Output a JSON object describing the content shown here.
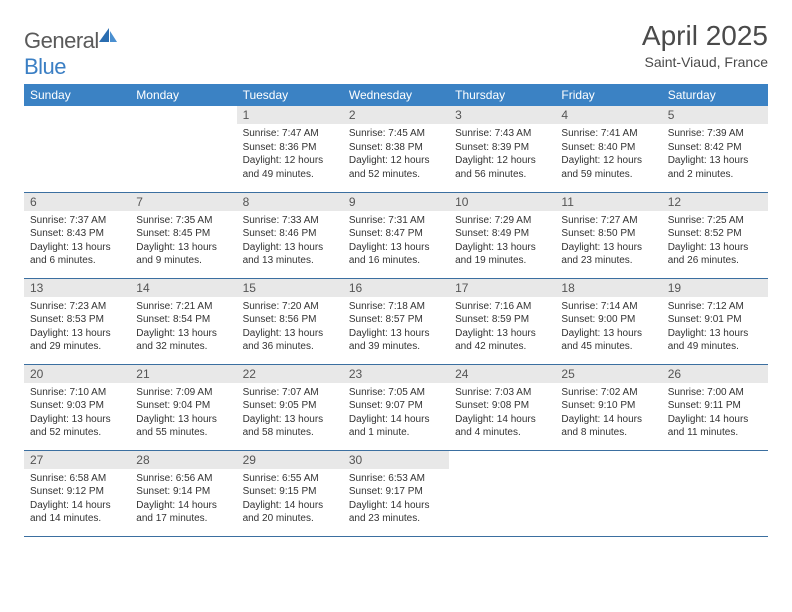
{
  "logo": {
    "text1": "General",
    "text2": "Blue"
  },
  "title": "April 2025",
  "subtitle": "Saint-Viaud, France",
  "colors": {
    "header_bg": "#3b82c4",
    "header_text": "#ffffff",
    "daynum_bg": "#e8e8e8",
    "daynum_text": "#555555",
    "body_text": "#333333",
    "border": "#3b6fa0",
    "logo_gray": "#5a5a5a",
    "logo_blue": "#3b7fc4"
  },
  "weekdays": [
    "Sunday",
    "Monday",
    "Tuesday",
    "Wednesday",
    "Thursday",
    "Friday",
    "Saturday"
  ],
  "weeks": [
    [
      null,
      null,
      {
        "n": "1",
        "sr": "7:47 AM",
        "ss": "8:36 PM",
        "dl": "12 hours and 49 minutes."
      },
      {
        "n": "2",
        "sr": "7:45 AM",
        "ss": "8:38 PM",
        "dl": "12 hours and 52 minutes."
      },
      {
        "n": "3",
        "sr": "7:43 AM",
        "ss": "8:39 PM",
        "dl": "12 hours and 56 minutes."
      },
      {
        "n": "4",
        "sr": "7:41 AM",
        "ss": "8:40 PM",
        "dl": "12 hours and 59 minutes."
      },
      {
        "n": "5",
        "sr": "7:39 AM",
        "ss": "8:42 PM",
        "dl": "13 hours and 2 minutes."
      }
    ],
    [
      {
        "n": "6",
        "sr": "7:37 AM",
        "ss": "8:43 PM",
        "dl": "13 hours and 6 minutes."
      },
      {
        "n": "7",
        "sr": "7:35 AM",
        "ss": "8:45 PM",
        "dl": "13 hours and 9 minutes."
      },
      {
        "n": "8",
        "sr": "7:33 AM",
        "ss": "8:46 PM",
        "dl": "13 hours and 13 minutes."
      },
      {
        "n": "9",
        "sr": "7:31 AM",
        "ss": "8:47 PM",
        "dl": "13 hours and 16 minutes."
      },
      {
        "n": "10",
        "sr": "7:29 AM",
        "ss": "8:49 PM",
        "dl": "13 hours and 19 minutes."
      },
      {
        "n": "11",
        "sr": "7:27 AM",
        "ss": "8:50 PM",
        "dl": "13 hours and 23 minutes."
      },
      {
        "n": "12",
        "sr": "7:25 AM",
        "ss": "8:52 PM",
        "dl": "13 hours and 26 minutes."
      }
    ],
    [
      {
        "n": "13",
        "sr": "7:23 AM",
        "ss": "8:53 PM",
        "dl": "13 hours and 29 minutes."
      },
      {
        "n": "14",
        "sr": "7:21 AM",
        "ss": "8:54 PM",
        "dl": "13 hours and 32 minutes."
      },
      {
        "n": "15",
        "sr": "7:20 AM",
        "ss": "8:56 PM",
        "dl": "13 hours and 36 minutes."
      },
      {
        "n": "16",
        "sr": "7:18 AM",
        "ss": "8:57 PM",
        "dl": "13 hours and 39 minutes."
      },
      {
        "n": "17",
        "sr": "7:16 AM",
        "ss": "8:59 PM",
        "dl": "13 hours and 42 minutes."
      },
      {
        "n": "18",
        "sr": "7:14 AM",
        "ss": "9:00 PM",
        "dl": "13 hours and 45 minutes."
      },
      {
        "n": "19",
        "sr": "7:12 AM",
        "ss": "9:01 PM",
        "dl": "13 hours and 49 minutes."
      }
    ],
    [
      {
        "n": "20",
        "sr": "7:10 AM",
        "ss": "9:03 PM",
        "dl": "13 hours and 52 minutes."
      },
      {
        "n": "21",
        "sr": "7:09 AM",
        "ss": "9:04 PM",
        "dl": "13 hours and 55 minutes."
      },
      {
        "n": "22",
        "sr": "7:07 AM",
        "ss": "9:05 PM",
        "dl": "13 hours and 58 minutes."
      },
      {
        "n": "23",
        "sr": "7:05 AM",
        "ss": "9:07 PM",
        "dl": "14 hours and 1 minute."
      },
      {
        "n": "24",
        "sr": "7:03 AM",
        "ss": "9:08 PM",
        "dl": "14 hours and 4 minutes."
      },
      {
        "n": "25",
        "sr": "7:02 AM",
        "ss": "9:10 PM",
        "dl": "14 hours and 8 minutes."
      },
      {
        "n": "26",
        "sr": "7:00 AM",
        "ss": "9:11 PM",
        "dl": "14 hours and 11 minutes."
      }
    ],
    [
      {
        "n": "27",
        "sr": "6:58 AM",
        "ss": "9:12 PM",
        "dl": "14 hours and 14 minutes."
      },
      {
        "n": "28",
        "sr": "6:56 AM",
        "ss": "9:14 PM",
        "dl": "14 hours and 17 minutes."
      },
      {
        "n": "29",
        "sr": "6:55 AM",
        "ss": "9:15 PM",
        "dl": "14 hours and 20 minutes."
      },
      {
        "n": "30",
        "sr": "6:53 AM",
        "ss": "9:17 PM",
        "dl": "14 hours and 23 minutes."
      },
      null,
      null,
      null
    ]
  ],
  "labels": {
    "sunrise": "Sunrise: ",
    "sunset": "Sunset: ",
    "daylight": "Daylight: "
  }
}
